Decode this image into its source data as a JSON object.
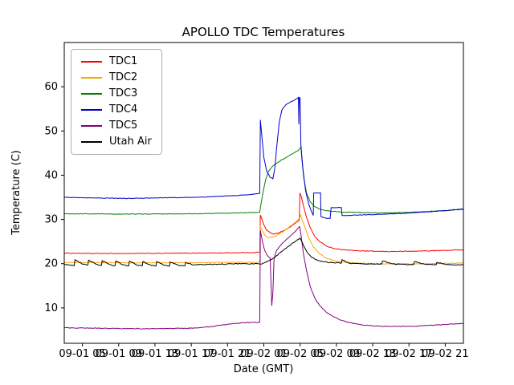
{
  "chart_data": {
    "type": "line",
    "title": "APOLLO TDC Temperatures",
    "xlabel": "Date (GMT)",
    "ylabel": "Temperature (C)",
    "xlim": [
      3,
      47
    ],
    "ylim": [
      2,
      70
    ],
    "grid": false,
    "legend_position": "upper left",
    "x_ticks": [
      {
        "pos": 5,
        "label": "09-01 05"
      },
      {
        "pos": 9,
        "label": "09-01 09"
      },
      {
        "pos": 13,
        "label": "09-01 13"
      },
      {
        "pos": 17,
        "label": "09-01 17"
      },
      {
        "pos": 21,
        "label": "09-01 21"
      },
      {
        "pos": 25,
        "label": "09-02 01"
      },
      {
        "pos": 29,
        "label": "09-02 05"
      },
      {
        "pos": 33,
        "label": "09-02 09"
      },
      {
        "pos": 37,
        "label": "09-02 13"
      },
      {
        "pos": 41,
        "label": "09-02 17"
      },
      {
        "pos": 45,
        "label": "09-02 21"
      }
    ],
    "y_ticks": [
      10,
      20,
      30,
      40,
      50,
      60
    ],
    "series": [
      {
        "name": "TDC1",
        "color": "#ff0000",
        "noise": 0.08,
        "points": [
          [
            3,
            22.4
          ],
          [
            6,
            22.3
          ],
          [
            10,
            22.3
          ],
          [
            14,
            22.35
          ],
          [
            18,
            22.4
          ],
          [
            21,
            22.45
          ],
          [
            23.5,
            22.5
          ],
          [
            24.55,
            22.6
          ],
          [
            24.62,
            31.0
          ],
          [
            24.8,
            30.0
          ],
          [
            25.0,
            28.8
          ],
          [
            25.3,
            27.6
          ],
          [
            25.7,
            27.0
          ],
          [
            26.1,
            26.7
          ],
          [
            26.6,
            26.9
          ],
          [
            27.2,
            27.5
          ],
          [
            27.9,
            28.3
          ],
          [
            28.5,
            29.2
          ],
          [
            28.9,
            29.8
          ],
          [
            28.98,
            36.0
          ],
          [
            29.15,
            35.0
          ],
          [
            29.4,
            32.8
          ],
          [
            29.7,
            30.5
          ],
          [
            30.1,
            28.2
          ],
          [
            30.6,
            26.2
          ],
          [
            31.2,
            24.9
          ],
          [
            31.9,
            24.0
          ],
          [
            32.8,
            23.4
          ],
          [
            34,
            23.1
          ],
          [
            35.5,
            22.9
          ],
          [
            37,
            22.8
          ],
          [
            39,
            22.75
          ],
          [
            41,
            22.8
          ],
          [
            43,
            22.9
          ],
          [
            45,
            23.0
          ],
          [
            47,
            23.15
          ]
        ]
      },
      {
        "name": "TDC2",
        "color": "#ffa500",
        "noise": 0.08,
        "points": [
          [
            3,
            20.3
          ],
          [
            6,
            20.25
          ],
          [
            10,
            20.2
          ],
          [
            14,
            20.2
          ],
          [
            18,
            20.25
          ],
          [
            21,
            20.3
          ],
          [
            23.5,
            20.3
          ],
          [
            24.55,
            20.35
          ],
          [
            24.62,
            28.3
          ],
          [
            24.85,
            27.4
          ],
          [
            25.1,
            26.4
          ],
          [
            25.5,
            25.9
          ],
          [
            26.0,
            26.0
          ],
          [
            26.6,
            26.6
          ],
          [
            27.3,
            27.5
          ],
          [
            28.0,
            28.6
          ],
          [
            28.6,
            29.6
          ],
          [
            28.95,
            30.4
          ],
          [
            29.05,
            31.0
          ],
          [
            29.25,
            29.8
          ],
          [
            29.6,
            27.8
          ],
          [
            30.0,
            25.6
          ],
          [
            30.5,
            23.7
          ],
          [
            31.1,
            22.3
          ],
          [
            31.9,
            21.2
          ],
          [
            32.9,
            20.6
          ],
          [
            34,
            20.3
          ],
          [
            35.5,
            20.1
          ],
          [
            37.5,
            20.0
          ],
          [
            40,
            19.95
          ],
          [
            42,
            20.0
          ],
          [
            44,
            20.05
          ],
          [
            46,
            20.1
          ],
          [
            47,
            20.15
          ]
        ]
      },
      {
        "name": "TDC3",
        "color": "#008000",
        "noise": 0.07,
        "points": [
          [
            3,
            31.3
          ],
          [
            6,
            31.25
          ],
          [
            10,
            31.2
          ],
          [
            14,
            31.25
          ],
          [
            18,
            31.3
          ],
          [
            21,
            31.4
          ],
          [
            23.5,
            31.55
          ],
          [
            24.55,
            31.6
          ],
          [
            24.65,
            33.0
          ],
          [
            24.9,
            36.0
          ],
          [
            25.2,
            39.0
          ],
          [
            25.5,
            40.8
          ],
          [
            25.9,
            41.9
          ],
          [
            26.4,
            42.7
          ],
          [
            27.0,
            43.5
          ],
          [
            27.7,
            44.3
          ],
          [
            28.4,
            45.1
          ],
          [
            28.9,
            45.8
          ],
          [
            29.1,
            46.4
          ],
          [
            29.18,
            44.0
          ],
          [
            29.4,
            39.5
          ],
          [
            29.7,
            36.0
          ],
          [
            30.1,
            34.0
          ],
          [
            30.6,
            32.9
          ],
          [
            31.3,
            32.2
          ],
          [
            32.2,
            31.9
          ],
          [
            33.5,
            31.7
          ],
          [
            35,
            31.6
          ],
          [
            37,
            31.5
          ],
          [
            39,
            31.5
          ],
          [
            41,
            31.6
          ],
          [
            43,
            31.8
          ],
          [
            45,
            32.0
          ],
          [
            47,
            32.25
          ]
        ]
      },
      {
        "name": "TDC4",
        "color": "#0000cd",
        "noise": 0.07,
        "points": [
          [
            3,
            35.0
          ],
          [
            6,
            34.85
          ],
          [
            10,
            34.75
          ],
          [
            14,
            34.9
          ],
          [
            18,
            35.05
          ],
          [
            21,
            35.3
          ],
          [
            23,
            35.55
          ],
          [
            24.3,
            35.8
          ],
          [
            24.55,
            35.9
          ],
          [
            24.62,
            52.5
          ],
          [
            24.8,
            48.5
          ],
          [
            25.0,
            44.0
          ],
          [
            25.3,
            41.0
          ],
          [
            25.7,
            39.5
          ],
          [
            26.0,
            39.2
          ],
          [
            26.2,
            41.5
          ],
          [
            26.45,
            47.0
          ],
          [
            26.7,
            52.0
          ],
          [
            27.0,
            54.8
          ],
          [
            27.4,
            55.9
          ],
          [
            27.9,
            56.5
          ],
          [
            28.4,
            57.0
          ],
          [
            28.7,
            57.4
          ],
          [
            28.82,
            57.6
          ],
          [
            28.86,
            51.5
          ],
          [
            28.9,
            57.5
          ],
          [
            29.0,
            57.5
          ],
          [
            29.08,
            47.0
          ],
          [
            29.3,
            41.5
          ],
          [
            29.6,
            36.5
          ],
          [
            29.95,
            33.5
          ],
          [
            30.25,
            31.8
          ],
          [
            30.45,
            30.9
          ],
          [
            30.5,
            36.0
          ],
          [
            30.8,
            36.0
          ],
          [
            31.25,
            36.0
          ],
          [
            31.3,
            30.6
          ],
          [
            31.8,
            30.3
          ],
          [
            32.3,
            30.2
          ],
          [
            32.42,
            32.7
          ],
          [
            33.0,
            32.7
          ],
          [
            33.55,
            32.7
          ],
          [
            33.62,
            30.9
          ],
          [
            34.3,
            30.9
          ],
          [
            35.5,
            31.0
          ],
          [
            37,
            31.1
          ],
          [
            39,
            31.25
          ],
          [
            41,
            31.45
          ],
          [
            43,
            31.7
          ],
          [
            45,
            32.0
          ],
          [
            47,
            32.4
          ]
        ]
      },
      {
        "name": "TDC5",
        "color": "#800080",
        "noise": 0.08,
        "points": [
          [
            3,
            5.5
          ],
          [
            6,
            5.45
          ],
          [
            9,
            5.35
          ],
          [
            12,
            5.3
          ],
          [
            15,
            5.35
          ],
          [
            17.5,
            5.45
          ],
          [
            19,
            5.7
          ],
          [
            20.5,
            6.2
          ],
          [
            22,
            6.55
          ],
          [
            23.5,
            6.7
          ],
          [
            24.55,
            6.75
          ],
          [
            24.62,
            27.5
          ],
          [
            24.85,
            25.0
          ],
          [
            25.1,
            23.0
          ],
          [
            25.4,
            21.8
          ],
          [
            25.7,
            21.2
          ],
          [
            25.88,
            10.5
          ],
          [
            26.0,
            13.5
          ],
          [
            26.12,
            21.0
          ],
          [
            26.4,
            23.0
          ],
          [
            26.9,
            24.3
          ],
          [
            27.5,
            25.5
          ],
          [
            28.1,
            26.6
          ],
          [
            28.6,
            27.6
          ],
          [
            28.95,
            28.4
          ],
          [
            29.1,
            26.5
          ],
          [
            29.35,
            22.5
          ],
          [
            29.7,
            18.5
          ],
          [
            30.1,
            15.0
          ],
          [
            30.6,
            12.3
          ],
          [
            31.2,
            10.4
          ],
          [
            31.9,
            9.0
          ],
          [
            32.7,
            8.0
          ],
          [
            33.7,
            7.1
          ],
          [
            34.8,
            6.5
          ],
          [
            36,
            6.1
          ],
          [
            37.5,
            5.9
          ],
          [
            39,
            5.8
          ],
          [
            41,
            5.85
          ],
          [
            43,
            6.0
          ],
          [
            45,
            6.25
          ],
          [
            47,
            6.5
          ]
        ]
      },
      {
        "name": "Utah Air",
        "color": "#000000",
        "noise": 0.1,
        "points": [
          [
            3,
            19.9
          ],
          [
            3.6,
            19.7
          ],
          [
            4.1,
            19.55
          ],
          [
            4.18,
            20.9
          ],
          [
            4.9,
            20.0
          ],
          [
            5.6,
            19.7
          ],
          [
            5.68,
            20.8
          ],
          [
            6.5,
            19.9
          ],
          [
            7.1,
            19.6
          ],
          [
            7.18,
            20.7
          ],
          [
            8.0,
            19.8
          ],
          [
            8.6,
            19.55
          ],
          [
            8.68,
            20.6
          ],
          [
            9.5,
            19.75
          ],
          [
            10.1,
            19.5
          ],
          [
            10.18,
            20.55
          ],
          [
            11.0,
            19.7
          ],
          [
            11.6,
            19.5
          ],
          [
            11.68,
            20.5
          ],
          [
            12.5,
            19.7
          ],
          [
            13.1,
            19.45
          ],
          [
            13.18,
            20.45
          ],
          [
            14.0,
            19.65
          ],
          [
            14.6,
            19.45
          ],
          [
            14.68,
            20.4
          ],
          [
            15.6,
            19.6
          ],
          [
            16.3,
            19.5
          ],
          [
            16.38,
            20.3
          ],
          [
            17.2,
            19.7
          ],
          [
            18,
            19.8
          ],
          [
            19,
            19.85
          ],
          [
            20,
            19.9
          ],
          [
            21.5,
            19.95
          ],
          [
            23,
            20.0
          ],
          [
            24.4,
            20.0
          ],
          [
            24.62,
            19.9
          ],
          [
            24.9,
            20.1
          ],
          [
            25.3,
            20.4
          ],
          [
            25.8,
            20.9
          ],
          [
            26.4,
            21.8
          ],
          [
            27.0,
            22.8
          ],
          [
            27.6,
            23.8
          ],
          [
            28.2,
            24.7
          ],
          [
            28.7,
            25.4
          ],
          [
            28.98,
            25.8
          ],
          [
            29.15,
            25.2
          ],
          [
            29.45,
            23.8
          ],
          [
            29.8,
            22.5
          ],
          [
            30.2,
            21.6
          ],
          [
            30.7,
            20.9
          ],
          [
            31.3,
            20.5
          ],
          [
            32.0,
            20.3
          ],
          [
            33.0,
            20.2
          ],
          [
            33.55,
            20.15
          ],
          [
            33.62,
            20.9
          ],
          [
            34.4,
            20.1
          ],
          [
            35.5,
            20.0
          ],
          [
            36.5,
            19.95
          ],
          [
            38.0,
            19.9
          ],
          [
            38.08,
            20.6
          ],
          [
            39.2,
            19.95
          ],
          [
            40.5,
            19.85
          ],
          [
            41.5,
            19.8
          ],
          [
            41.58,
            20.45
          ],
          [
            42.8,
            19.85
          ],
          [
            44.0,
            19.75
          ],
          [
            44.08,
            20.3
          ],
          [
            45.2,
            19.8
          ],
          [
            46.2,
            19.7
          ],
          [
            47,
            19.8
          ]
        ]
      }
    ]
  }
}
